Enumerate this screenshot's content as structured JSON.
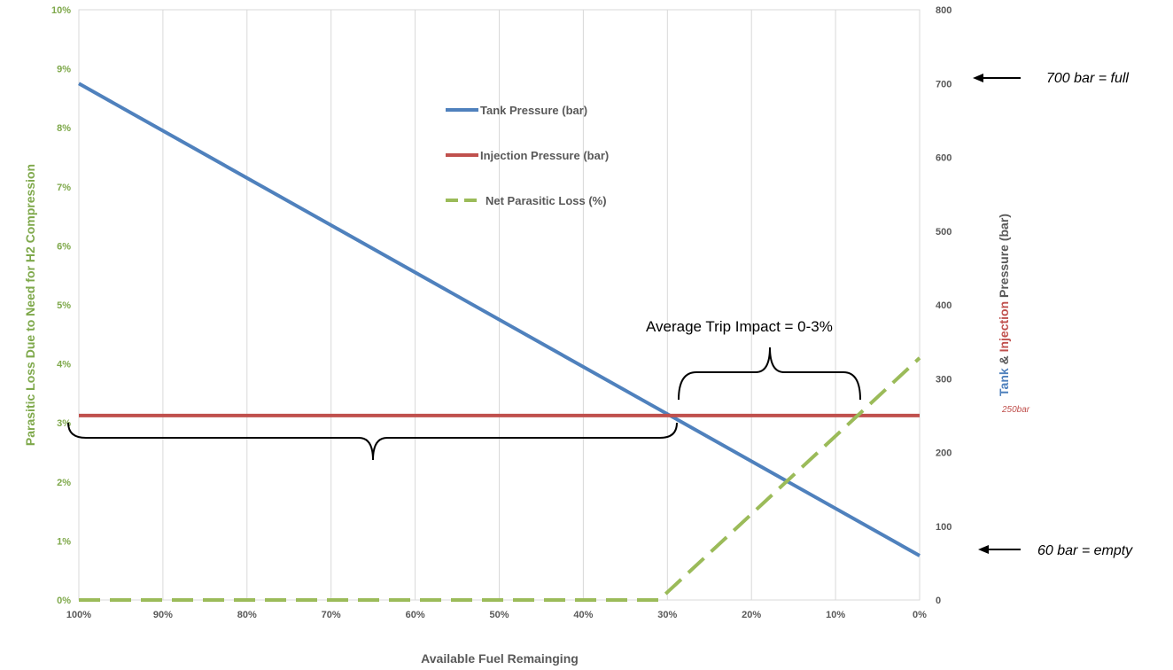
{
  "chart_data": {
    "type": "line",
    "x": [
      100,
      90,
      80,
      70,
      60,
      50,
      40,
      30,
      20,
      10,
      0
    ],
    "x_tick_labels": [
      "100%",
      "90%",
      "80%",
      "70%",
      "60%",
      "50%",
      "40%",
      "30%",
      "20%",
      "10%",
      "0%"
    ],
    "xlabel": "Available Fuel Remainging",
    "ylabel_left": "Parasitic Loss Due to Need for H2 Compression",
    "ylabel_right_parts": [
      "Tank",
      " & ",
      "Injection",
      " Pressure (bar)"
    ],
    "ylim_left": [
      0,
      10
    ],
    "ylim_right": [
      0,
      800
    ],
    "y_left_tick_labels": [
      "0%",
      "1%",
      "2%",
      "3%",
      "4%",
      "5%",
      "6%",
      "7%",
      "8%",
      "9%",
      "10%"
    ],
    "y_right_tick_labels": [
      "0",
      "100",
      "200",
      "300",
      "400",
      "500",
      "600",
      "700",
      "800"
    ],
    "grid": "vertical",
    "legend_position": "top-center",
    "series": [
      {
        "name": "Tank Pressure (bar)",
        "axis": "right",
        "color": "#4f81bd",
        "style": "solid",
        "x": [
          100,
          0
        ],
        "y": [
          700,
          60
        ]
      },
      {
        "name": "Injection Pressure (bar)",
        "axis": "right",
        "color": "#c0504d",
        "style": "solid",
        "x": [
          100,
          0
        ],
        "y": [
          250,
          250
        ]
      },
      {
        "name": "Net Parasitic Loss (%)",
        "axis": "left",
        "color": "#9bbb59",
        "style": "dashed",
        "x": [
          100,
          31,
          0
        ],
        "y": [
          0,
          0,
          4.1
        ]
      }
    ],
    "annotations": {
      "full_label": "700 bar = full",
      "empty_label": "60 bar = empty",
      "trip_impact": "Average Trip Impact = 0-3%",
      "injection_value": "250bar"
    }
  }
}
